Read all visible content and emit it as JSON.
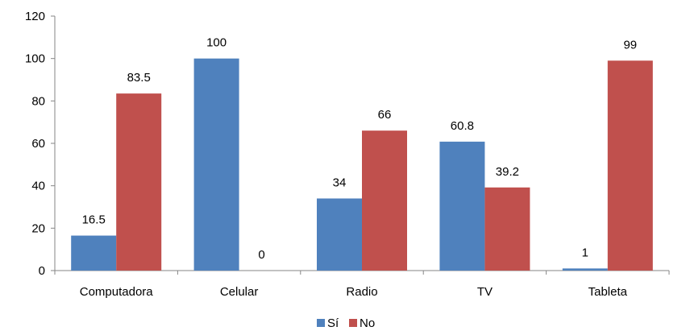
{
  "chart_data": {
    "type": "bar",
    "categories": [
      "Computadora",
      "Celular",
      "Radio",
      "TV",
      "Tableta"
    ],
    "series": [
      {
        "name": "Sí",
        "values": [
          16.5,
          100,
          34,
          60.8,
          1
        ],
        "labels": [
          "16.5",
          "100",
          "34",
          "60.8",
          "1"
        ],
        "color": "#4F81BD"
      },
      {
        "name": "No",
        "values": [
          83.5,
          0,
          66,
          39.2,
          99
        ],
        "labels": [
          "83.5",
          "0",
          "66",
          "39.2",
          "99"
        ],
        "color": "#C0504D"
      }
    ],
    "ylim": [
      0,
      120
    ],
    "yticks": [
      "0",
      "20",
      "40",
      "60",
      "80",
      "100",
      "120"
    ],
    "grid": false,
    "legend_position": "bottom"
  }
}
